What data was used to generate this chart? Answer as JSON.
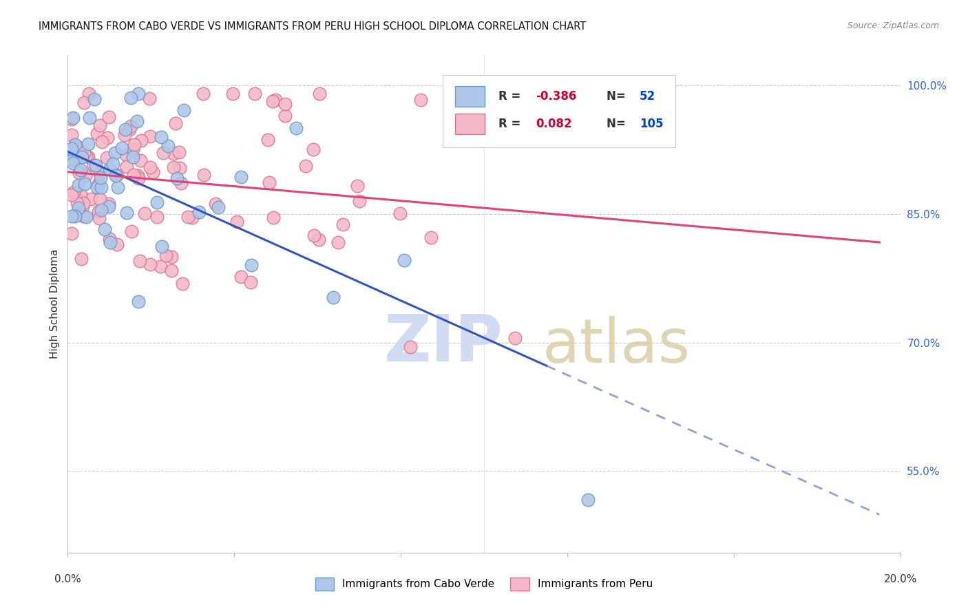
{
  "title": "IMMIGRANTS FROM CABO VERDE VS IMMIGRANTS FROM PERU HIGH SCHOOL DIPLOMA CORRELATION CHART",
  "source": "Source: ZipAtlas.com",
  "ylabel": "High School Diploma",
  "ytick_values": [
    1.0,
    0.85,
    0.7,
    0.55
  ],
  "ytick_labels": [
    "100.0%",
    "85.0%",
    "70.0%",
    "55.0%"
  ],
  "xmin": 0.0,
  "xmax": 0.2,
  "ymin": 0.455,
  "ymax": 1.035,
  "cabo_R": -0.386,
  "cabo_N": 52,
  "peru_R": 0.082,
  "peru_N": 105,
  "cabo_color": "#aec6e8",
  "cabo_edge_color": "#6699cc",
  "peru_color": "#f4b8c8",
  "peru_edge_color": "#e0708a",
  "cabo_line_color": "#3355bb",
  "peru_line_color": "#dd4477",
  "watermark_zip_color": "#ccd8f0",
  "watermark_atlas_color": "#d4c89a",
  "bg_color": "#ffffff"
}
